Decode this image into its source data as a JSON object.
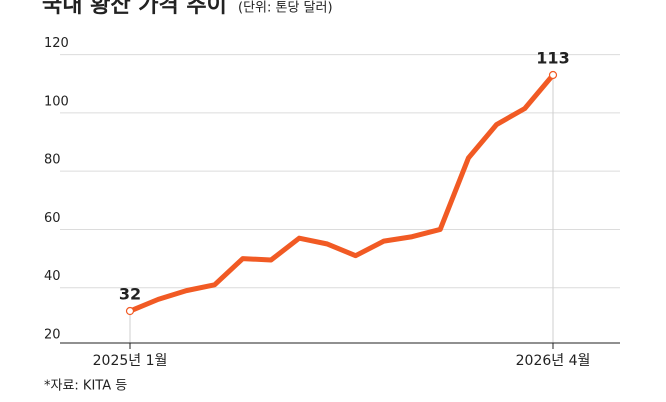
{
  "chart_data": {
    "type": "line",
    "title": "국내 황산 가격 추이",
    "subtitle": "(단위: 톤당 달러)",
    "source": "*자료: KITA 등",
    "categories": [
      "2025년 1월",
      null,
      null,
      null,
      null,
      null,
      null,
      null,
      null,
      null,
      null,
      null,
      null,
      null,
      null,
      "2026년 4월"
    ],
    "values": [
      32,
      36,
      39,
      41,
      50,
      49.5,
      57,
      55,
      51,
      56,
      57.5,
      60,
      84.5,
      96,
      101.5,
      113
    ],
    "color": "#f15a24",
    "ylim": [
      20,
      120
    ],
    "yticks": [
      20,
      40,
      60,
      80,
      100,
      120
    ],
    "grid": true
  }
}
